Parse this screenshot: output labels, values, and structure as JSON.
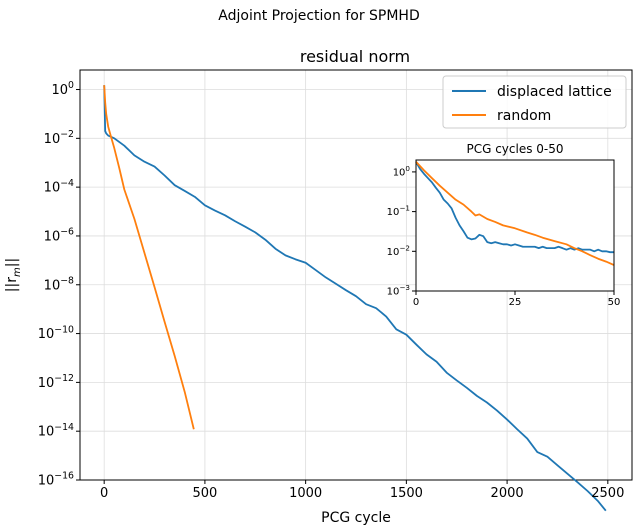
{
  "figure": {
    "suptitle": "Adjoint Projection for SPMHD"
  },
  "colors": {
    "displaced": "#1f77b4",
    "random": "#ff7f0e",
    "grid": "#dddddd"
  },
  "chart_data": [
    {
      "type": "line",
      "title": "residual norm",
      "xlabel": "PCG cycle",
      "ylabel": "||r_m||",
      "yscale": "log",
      "xlim": [
        -120,
        2620
      ],
      "ylim_exp": [
        -16,
        0.8
      ],
      "xticks": [
        {
          "v": 0,
          "label": "0"
        },
        {
          "v": 500,
          "label": "500"
        },
        {
          "v": 1000,
          "label": "1000"
        },
        {
          "v": 1500,
          "label": "1500"
        },
        {
          "v": 2000,
          "label": "2000"
        },
        {
          "v": 2500,
          "label": "2500"
        }
      ],
      "yticks": [
        {
          "e": 0,
          "base": "10",
          "exp": "0"
        },
        {
          "e": -2,
          "base": "10",
          "exp": "−2"
        },
        {
          "e": -4,
          "base": "10",
          "exp": "−4"
        },
        {
          "e": -6,
          "base": "10",
          "exp": "−6"
        },
        {
          "e": -8,
          "base": "10",
          "exp": "−8"
        },
        {
          "e": -10,
          "base": "10",
          "exp": "−10"
        },
        {
          "e": -12,
          "base": "10",
          "exp": "−12"
        },
        {
          "e": -14,
          "base": "10",
          "exp": "−14"
        },
        {
          "e": -16,
          "base": "10",
          "exp": "−16"
        }
      ],
      "grid": true,
      "legend": {
        "position": "upper right",
        "entries": [
          "displaced lattice",
          "random"
        ]
      },
      "series": [
        {
          "name": "displaced lattice",
          "color_key": "displaced",
          "points": [
            [
              0,
              1.5
            ],
            [
              5,
              0.02
            ],
            [
              10,
              0.016
            ],
            [
              20,
              0.013
            ],
            [
              50,
              0.01
            ],
            [
              100,
              0.005
            ],
            [
              150,
              0.002
            ],
            [
              200,
              0.0011
            ],
            [
              250,
              0.0007
            ],
            [
              300,
              0.0003
            ],
            [
              350,
              0.00012
            ],
            [
              400,
              7e-05
            ],
            [
              450,
              4e-05
            ],
            [
              500,
              1.8e-05
            ],
            [
              550,
              1.1e-05
            ],
            [
              600,
              7e-06
            ],
            [
              650,
              4e-06
            ],
            [
              700,
              2.4e-06
            ],
            [
              750,
              1.4e-06
            ],
            [
              800,
              7e-07
            ],
            [
              850,
              3e-07
            ],
            [
              900,
              1.6e-07
            ],
            [
              950,
              1.1e-07
            ],
            [
              1000,
              8e-08
            ],
            [
              1050,
              4e-08
            ],
            [
              1100,
              2e-08
            ],
            [
              1150,
              1.1e-08
            ],
            [
              1200,
              6e-09
            ],
            [
              1250,
              3.4e-09
            ],
            [
              1300,
              1.6e-09
            ],
            [
              1350,
              1.1e-09
            ],
            [
              1400,
              5e-10
            ],
            [
              1450,
              1.5e-10
            ],
            [
              1500,
              9e-11
            ],
            [
              1550,
              3.5e-11
            ],
            [
              1600,
              1.4e-11
            ],
            [
              1650,
              7e-12
            ],
            [
              1700,
              2.5e-12
            ],
            [
              1750,
              1.2e-12
            ],
            [
              1800,
              6e-13
            ],
            [
              1850,
              2.8e-13
            ],
            [
              1900,
              1.5e-13
            ],
            [
              1950,
              7e-14
            ],
            [
              2000,
              3e-14
            ],
            [
              2050,
              1.2e-14
            ],
            [
              2100,
              5e-15
            ],
            [
              2150,
              1.4e-15
            ],
            [
              2200,
              9e-16
            ],
            [
              2250,
              4e-16
            ],
            [
              2300,
              1.8e-16
            ],
            [
              2350,
              8e-17
            ],
            [
              2400,
              3.5e-17
            ],
            [
              2450,
              1.4e-17
            ],
            [
              2490,
              5.5e-18
            ]
          ]
        },
        {
          "name": "random",
          "color_key": "random",
          "points": [
            [
              0,
              1.5
            ],
            [
              5,
              0.3
            ],
            [
              10,
              0.1
            ],
            [
              20,
              0.03
            ],
            [
              30,
              0.015
            ],
            [
              50,
              0.004
            ],
            [
              75,
              0.0006
            ],
            [
              100,
              8e-05
            ],
            [
              150,
              5e-06
            ],
            [
              200,
              2e-07
            ],
            [
              250,
              8e-09
            ],
            [
              300,
              3e-10
            ],
            [
              350,
              1.2e-11
            ],
            [
              400,
              4e-13
            ],
            [
              445,
              1.2e-14
            ]
          ]
        }
      ]
    },
    {
      "type": "line",
      "title": "PCG cycles 0-50",
      "yscale": "log",
      "xlim": [
        0,
        50
      ],
      "ylim_exp": [
        -3,
        0.3
      ],
      "xticks": [
        {
          "v": 0,
          "label": "0"
        },
        {
          "v": 25,
          "label": "25"
        },
        {
          "v": 50,
          "label": "50"
        }
      ],
      "yticks": [
        {
          "e": 0,
          "base": "10",
          "exp": "0"
        },
        {
          "e": -1,
          "base": "10",
          "exp": "−1"
        },
        {
          "e": -2,
          "base": "10",
          "exp": "−2"
        },
        {
          "e": -3,
          "base": "10",
          "exp": "−3"
        }
      ],
      "series": [
        {
          "name": "displaced lattice",
          "color_key": "displaced",
          "points": [
            [
              0,
              1.8
            ],
            [
              1,
              1.2
            ],
            [
              2,
              0.9
            ],
            [
              3,
              0.7
            ],
            [
              4,
              0.55
            ],
            [
              5,
              0.4
            ],
            [
              6,
              0.3
            ],
            [
              7,
              0.2
            ],
            [
              8,
              0.16
            ],
            [
              9,
              0.12
            ],
            [
              10,
              0.07
            ],
            [
              11,
              0.045
            ],
            [
              12,
              0.032
            ],
            [
              13,
              0.022
            ],
            [
              14,
              0.02
            ],
            [
              15,
              0.021
            ],
            [
              16,
              0.026
            ],
            [
              17,
              0.024
            ],
            [
              18,
              0.017
            ],
            [
              19,
              0.016
            ],
            [
              20,
              0.017
            ],
            [
              21,
              0.016
            ],
            [
              22,
              0.015
            ],
            [
              23,
              0.015
            ],
            [
              24,
              0.014
            ],
            [
              25,
              0.015
            ],
            [
              26,
              0.014
            ],
            [
              27,
              0.013
            ],
            [
              28,
              0.013
            ],
            [
              29,
              0.013
            ],
            [
              30,
              0.013
            ],
            [
              31,
              0.012
            ],
            [
              32,
              0.013
            ],
            [
              33,
              0.012
            ],
            [
              34,
              0.012
            ],
            [
              35,
              0.012
            ],
            [
              36,
              0.013
            ],
            [
              37,
              0.012
            ],
            [
              38,
              0.011
            ],
            [
              39,
              0.012
            ],
            [
              40,
              0.011
            ],
            [
              41,
              0.012
            ],
            [
              42,
              0.011
            ],
            [
              43,
              0.011
            ],
            [
              44,
              0.011
            ],
            [
              45,
              0.01
            ],
            [
              46,
              0.011
            ],
            [
              47,
              0.01
            ],
            [
              48,
              0.01
            ],
            [
              49,
              0.0095
            ],
            [
              50,
              0.0095
            ]
          ]
        },
        {
          "name": "random",
          "color_key": "random",
          "points": [
            [
              0,
              1.8
            ],
            [
              2,
              1.1
            ],
            [
              4,
              0.7
            ],
            [
              6,
              0.45
            ],
            [
              8,
              0.3
            ],
            [
              10,
              0.2
            ],
            [
              12,
              0.15
            ],
            [
              14,
              0.1
            ],
            [
              15,
              0.08
            ],
            [
              16,
              0.085
            ],
            [
              18,
              0.065
            ],
            [
              20,
              0.055
            ],
            [
              22,
              0.045
            ],
            [
              25,
              0.038
            ],
            [
              28,
              0.03
            ],
            [
              30,
              0.026
            ],
            [
              32,
              0.022
            ],
            [
              35,
              0.018
            ],
            [
              38,
              0.015
            ],
            [
              40,
              0.012
            ],
            [
              42,
              0.01
            ],
            [
              44,
              0.008
            ],
            [
              46,
              0.0065
            ],
            [
              48,
              0.0055
            ],
            [
              50,
              0.0045
            ]
          ]
        }
      ]
    }
  ]
}
